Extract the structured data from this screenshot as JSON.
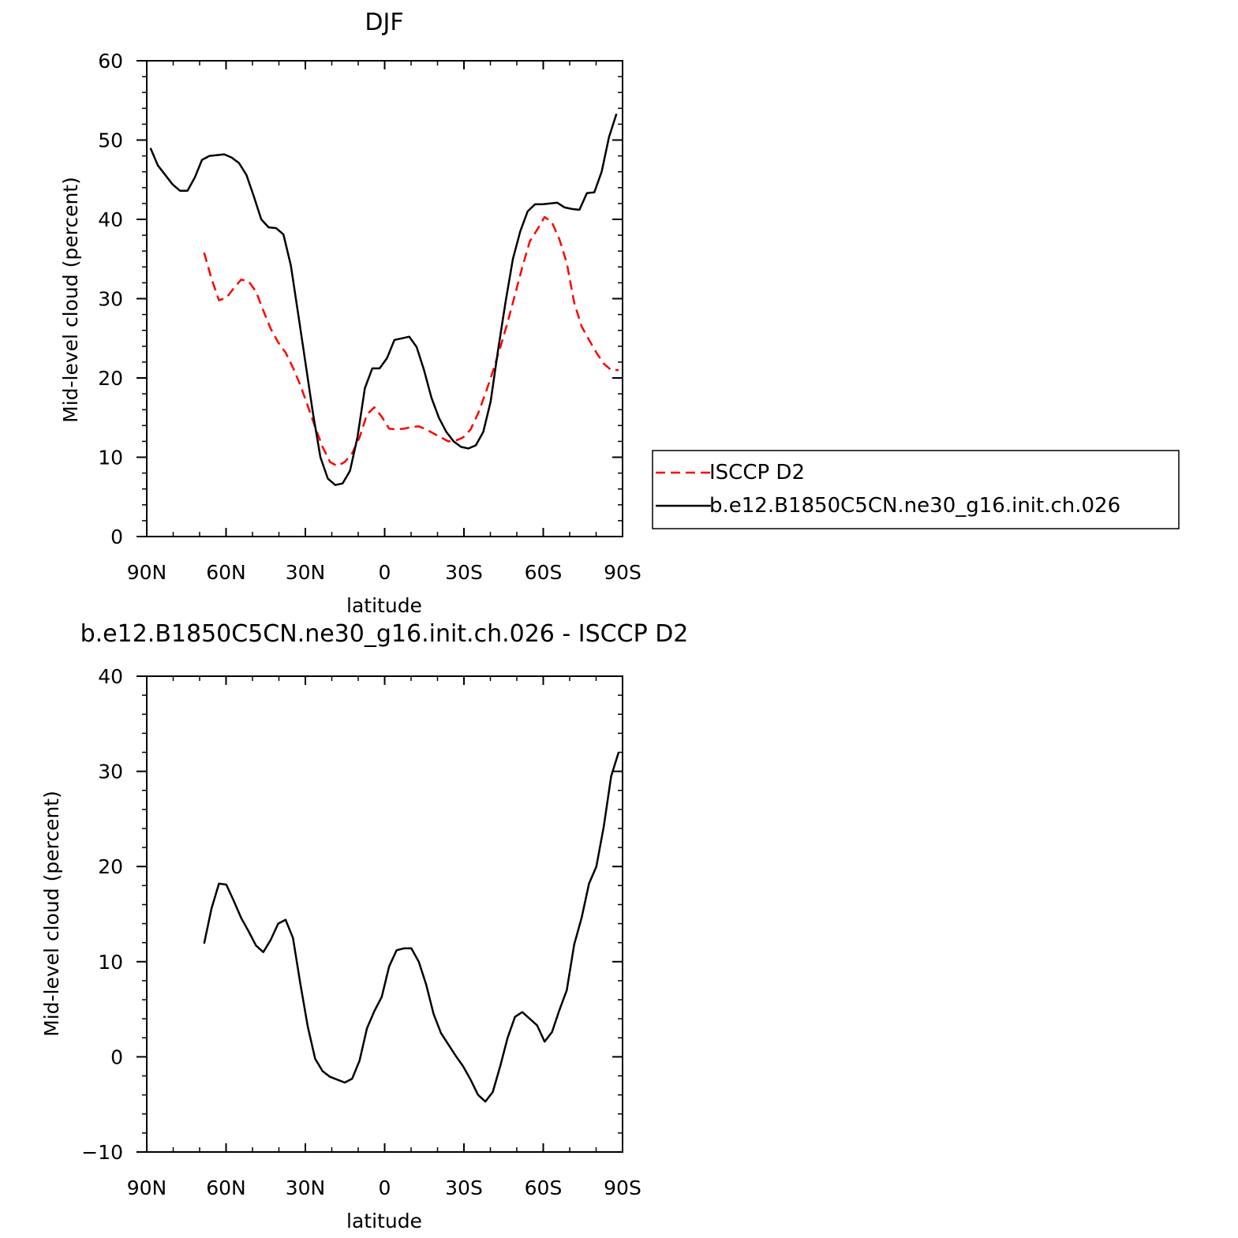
{
  "chart_data": [
    {
      "type": "line",
      "title": "DJF",
      "xlabel": "latitude",
      "ylabel": "Mid-level cloud (percent)",
      "xlim": [
        90,
        -90
      ],
      "ylim": [
        0,
        60
      ],
      "xticks": [
        90,
        60,
        30,
        0,
        -30,
        -60,
        -90
      ],
      "xtick_labels": [
        "90N",
        "60N",
        "30N",
        "0",
        "30S",
        "60S",
        "90S"
      ],
      "yticks": [
        0,
        10,
        20,
        30,
        40,
        50,
        60
      ],
      "ytick_labels": [
        "0",
        "10",
        "20",
        "30",
        "40",
        "50",
        "60"
      ],
      "legend": "right",
      "series": [
        {
          "name": "ISCCP D2",
          "color": "#ff0000",
          "dash": "dashed",
          "x": [
            68.3,
            65.5,
            62.7,
            59.9,
            57.1,
            54.3,
            51.5,
            48.7,
            45.9,
            43.1,
            40.3,
            37.5,
            34.7,
            31.9,
            29.1,
            26.3,
            23.5,
            20.7,
            17.9,
            15.1,
            12.3,
            9.5,
            6.7,
            3.9,
            1.1,
            -1.7,
            -4.5,
            -7.3,
            -10.1,
            -12.9,
            -15.7,
            -18.5,
            -21.3,
            -24.1,
            -26.9,
            -29.7,
            -32.5,
            -35.3,
            -38.1,
            -40.9,
            -43.7,
            -46.5,
            -49.3,
            -52.1,
            -54.9,
            -57.7,
            -60.5,
            -63.3,
            -66.1,
            -68.9,
            -71.7,
            -74.5,
            -77.3,
            -80.1,
            -82.9,
            -85.7,
            -88.5
          ],
          "y": [
            35.8,
            32.5,
            29.8,
            30.1,
            31.3,
            32.4,
            32.2,
            30.9,
            28.5,
            26.2,
            24.5,
            23.2,
            21.3,
            19.1,
            16.5,
            13.8,
            11.3,
            9.4,
            8.9,
            9.4,
            10.5,
            12.5,
            15.4,
            16.3,
            15.1,
            13.6,
            13.5,
            13.6,
            13.8,
            13.9,
            13.5,
            13.0,
            12.5,
            12.0,
            12.1,
            12.5,
            13.5,
            15.5,
            18.0,
            20.8,
            23.8,
            27.0,
            30.5,
            34.0,
            37.2,
            38.7,
            40.3,
            39.6,
            37.5,
            34.5,
            29.5,
            26.5,
            24.8,
            23.2,
            21.8,
            21.0,
            21.0
          ]
        },
        {
          "name": "b.e12.B1850C5CN.ne30_g16.init.ch.026",
          "color": "#000000",
          "dash": "solid",
          "x": [
            88.6,
            85.8,
            83.0,
            80.2,
            77.4,
            74.6,
            71.8,
            69.1,
            66.3,
            63.5,
            60.7,
            57.9,
            55.1,
            52.3,
            49.5,
            46.7,
            43.9,
            41.1,
            38.3,
            35.5,
            32.7,
            29.9,
            27.1,
            24.3,
            21.5,
            18.7,
            15.9,
            13.1,
            10.3,
            7.5,
            4.7,
            1.9,
            -0.9,
            -3.7,
            -6.5,
            -9.3,
            -12.1,
            -14.9,
            -17.7,
            -20.5,
            -23.3,
            -26.1,
            -28.9,
            -31.7,
            -34.5,
            -37.3,
            -40.1,
            -42.9,
            -45.7,
            -48.5,
            -51.3,
            -54.1,
            -56.9,
            -59.7,
            -62.5,
            -65.3,
            -68.1,
            -70.9,
            -73.7,
            -76.5,
            -79.3,
            -82.1,
            -84.9,
            -87.7
          ],
          "y": [
            49.0,
            46.8,
            45.6,
            44.4,
            43.6,
            43.6,
            45.3,
            47.5,
            48.0,
            48.1,
            48.2,
            47.8,
            47.1,
            45.6,
            42.9,
            40.0,
            39.0,
            38.9,
            38.1,
            34.2,
            28.0,
            21.8,
            15.5,
            10.0,
            7.3,
            6.5,
            6.7,
            8.3,
            12.5,
            18.7,
            21.2,
            21.2,
            22.5,
            24.8,
            25.0,
            25.2,
            23.9,
            21.0,
            17.5,
            15.0,
            13.2,
            12.0,
            11.3,
            11.1,
            11.5,
            13.2,
            17.0,
            23.5,
            29.5,
            35.0,
            38.5,
            41.0,
            41.9,
            41.9,
            42.0,
            42.1,
            41.5,
            41.3,
            41.2,
            43.3,
            43.4,
            46.0,
            50.4,
            53.3
          ]
        }
      ]
    },
    {
      "type": "line",
      "title": "b.e12.B1850C5CN.ne30_g16.init.ch.026 - ISCCP D2",
      "xlabel": "latitude",
      "ylabel": "Mid-level cloud (percent)",
      "xlim": [
        90,
        -90
      ],
      "ylim": [
        -10,
        40
      ],
      "xticks": [
        90,
        60,
        30,
        0,
        -30,
        -60,
        -90
      ],
      "xtick_labels": [
        "90N",
        "60N",
        "30N",
        "0",
        "30S",
        "60S",
        "90S"
      ],
      "yticks": [
        -10,
        0,
        10,
        20,
        30,
        40
      ],
      "ytick_labels": [
        "−10",
        "0",
        "10",
        "20",
        "30",
        "40"
      ],
      "series": [
        {
          "color": "#000000",
          "dash": "solid",
          "x": [
            68.3,
            65.5,
            62.7,
            59.9,
            57.1,
            54.3,
            51.5,
            48.7,
            45.9,
            43.1,
            40.3,
            37.5,
            34.7,
            31.9,
            29.1,
            26.3,
            23.5,
            20.7,
            17.9,
            15.1,
            12.3,
            9.5,
            6.7,
            3.9,
            1.1,
            -1.7,
            -4.5,
            -7.3,
            -10.1,
            -12.9,
            -15.7,
            -18.5,
            -21.3,
            -24.1,
            -26.9,
            -29.7,
            -32.5,
            -35.3,
            -38.1,
            -40.9,
            -43.7,
            -46.5,
            -49.3,
            -52.1,
            -54.9,
            -57.7,
            -60.5,
            -63.3,
            -66.1,
            -68.9,
            -71.7,
            -74.5,
            -77.3,
            -80.1,
            -82.9,
            -85.7,
            -88.5
          ],
          "y": [
            11.9,
            15.6,
            18.2,
            18.1,
            16.4,
            14.6,
            13.2,
            11.7,
            11.0,
            12.3,
            14.0,
            14.4,
            12.5,
            7.7,
            3.2,
            -0.2,
            -1.5,
            -2.1,
            -2.4,
            -2.7,
            -2.3,
            -0.4,
            3.0,
            4.8,
            6.3,
            9.5,
            11.2,
            11.4,
            11.4,
            10.0,
            7.6,
            4.5,
            2.5,
            1.3,
            0.1,
            -1.0,
            -2.4,
            -4.0,
            -4.7,
            -3.7,
            -1.0,
            2.0,
            4.2,
            4.7,
            4.0,
            3.3,
            1.6,
            2.6,
            4.9,
            7.0,
            11.8,
            14.6,
            18.2,
            20.0,
            24.2,
            29.5,
            32.0
          ]
        }
      ]
    }
  ]
}
